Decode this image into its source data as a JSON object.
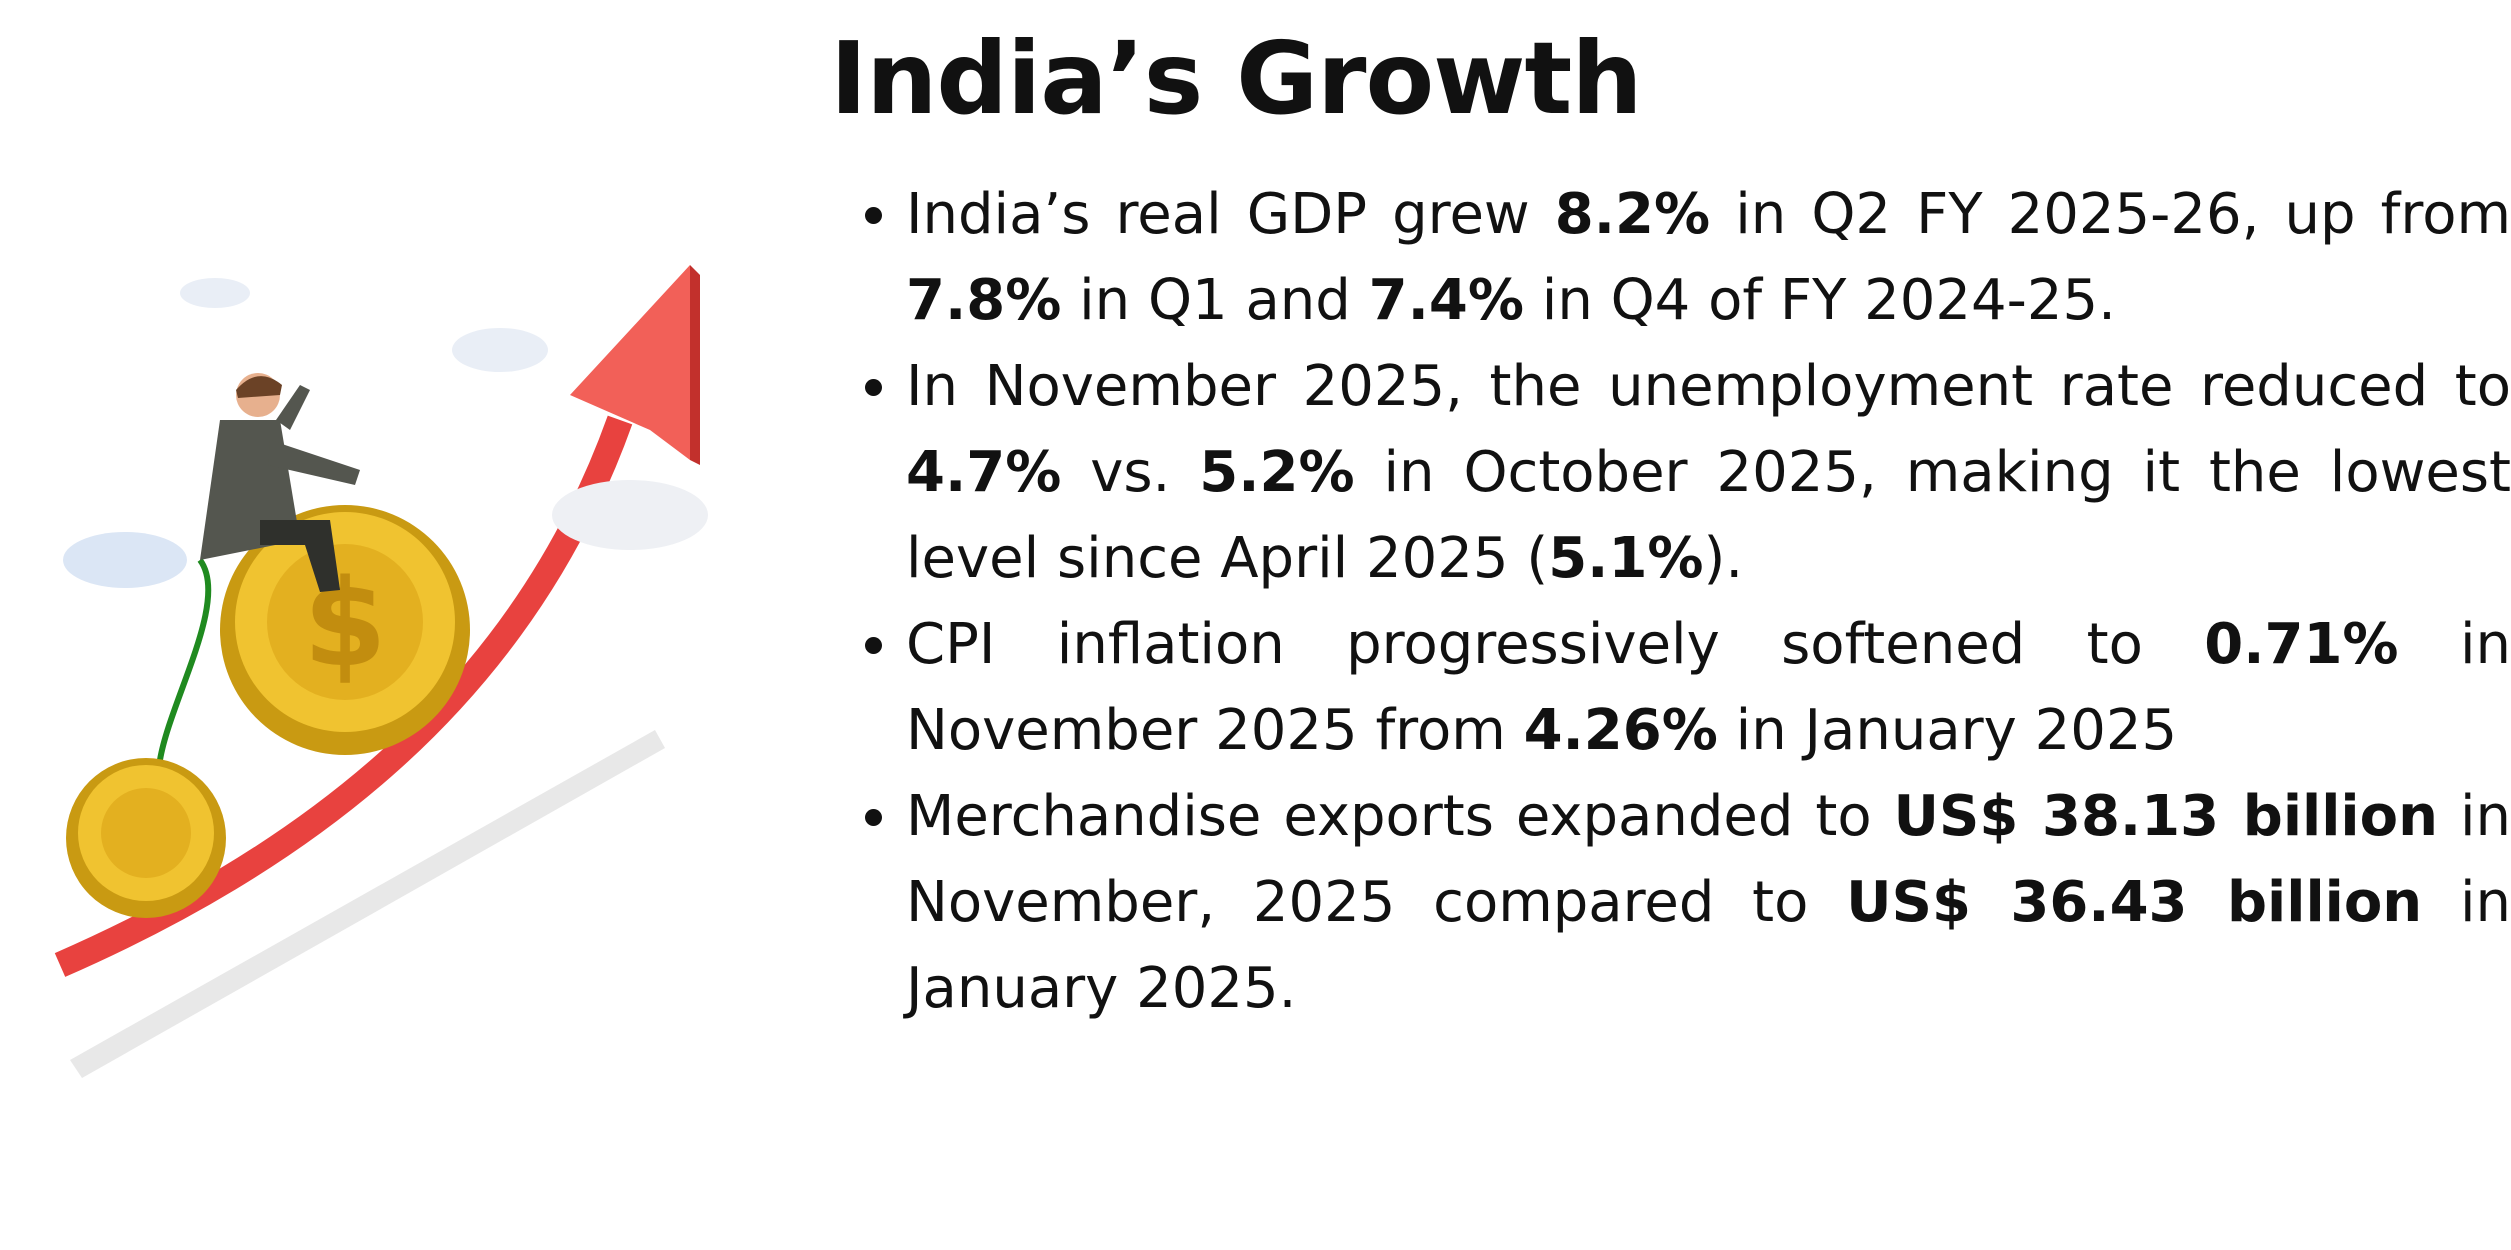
{
  "header": {
    "title": "India’s Growth"
  },
  "bullets": [
    [
      {
        "text": "India’s real GDP grew ",
        "bold": false
      },
      {
        "text": "8.2%",
        "bold": true
      },
      {
        "text": " in Q2 FY 2025-26, up from ",
        "bold": false
      },
      {
        "text": "7.8%",
        "bold": true
      },
      {
        "text": " in Q1 and ",
        "bold": false
      },
      {
        "text": "7.4%",
        "bold": true
      },
      {
        "text": " in Q4 of FY 2024-25.",
        "bold": false
      }
    ],
    [
      {
        "text": "In November 2025, the unemployment rate reduced to ",
        "bold": false
      },
      {
        "text": "4.7%",
        "bold": true
      },
      {
        "text": " vs. ",
        "bold": false
      },
      {
        "text": "5.2%",
        "bold": true
      },
      {
        "text": " in October 2025, making it the lowest level since April 2025 (",
        "bold": false
      },
      {
        "text": "5.1%",
        "bold": true
      },
      {
        "text": ").",
        "bold": false
      }
    ],
    [
      {
        "text": "CPI inflation progressively softened to ",
        "bold": false
      },
      {
        "text": "0.71%",
        "bold": true
      },
      {
        "text": " in November 2025 from ",
        "bold": false
      },
      {
        "text": "4.26%",
        "bold": true
      },
      {
        "text": " in January 2025",
        "bold": false
      }
    ],
    [
      {
        "text": "Merchandise exports expanded to ",
        "bold": false
      },
      {
        "text": "US$ 38.13 billion",
        "bold": true
      },
      {
        "text": " in November, 2025 compared to ",
        "bold": false
      },
      {
        "text": "US$ 36.43 billion",
        "bold": true
      },
      {
        "text": " in January 2025.",
        "bold": false
      }
    ]
  ]
}
